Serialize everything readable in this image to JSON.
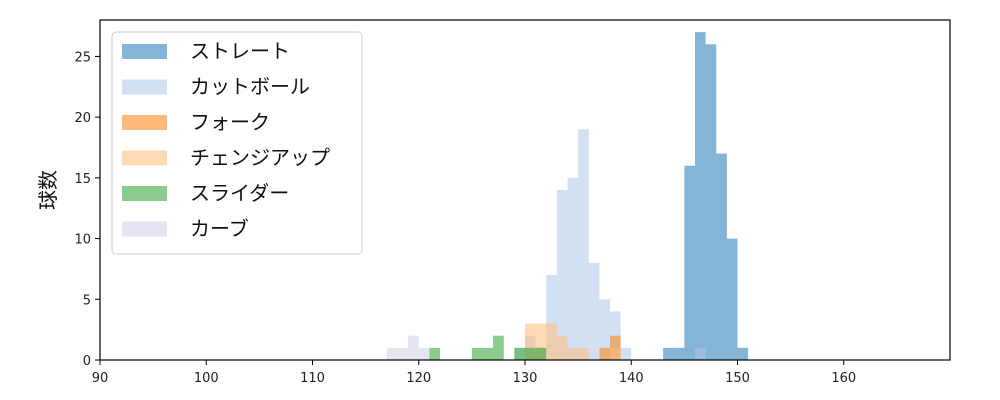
{
  "chart_data": {
    "type": "histogram",
    "xlabel": "",
    "ylabel": "球数",
    "xlim": [
      90,
      170
    ],
    "ylim": [
      0,
      28
    ],
    "xticks": [
      90,
      100,
      110,
      120,
      130,
      140,
      150,
      160
    ],
    "yticks": [
      0,
      5,
      10,
      15,
      20,
      25
    ],
    "grid": false,
    "legend_position": "top-left",
    "bin_width": 1,
    "series": [
      {
        "name": "ストレート",
        "color": "#1f77b4",
        "bars": [
          [
            143,
            1
          ],
          [
            144,
            1
          ],
          [
            145,
            16
          ],
          [
            146,
            27
          ],
          [
            147,
            26
          ],
          [
            148,
            17
          ],
          [
            149,
            10
          ],
          [
            150,
            1
          ]
        ]
      },
      {
        "name": "カットボール",
        "color": "#aec7e8",
        "bars": [
          [
            129,
            1
          ],
          [
            130,
            2
          ],
          [
            131,
            1
          ],
          [
            132,
            7
          ],
          [
            133,
            14
          ],
          [
            134,
            15
          ],
          [
            135,
            19
          ],
          [
            136,
            8
          ],
          [
            137,
            5
          ],
          [
            138,
            4
          ],
          [
            139,
            1
          ],
          [
            146,
            1
          ]
        ]
      },
      {
        "name": "フォーク",
        "color": "#ff7f0e",
        "bars": [
          [
            137,
            1
          ],
          [
            138,
            2
          ]
        ]
      },
      {
        "name": "チェンジアップ",
        "color": "#ffbb78",
        "bars": [
          [
            130,
            3
          ],
          [
            131,
            3
          ],
          [
            132,
            3
          ],
          [
            133,
            2
          ],
          [
            134,
            1
          ],
          [
            135,
            1
          ],
          [
            138,
            1
          ]
        ]
      },
      {
        "name": "スライダー",
        "color": "#2ca02c",
        "bars": [
          [
            121,
            1
          ],
          [
            125,
            1
          ],
          [
            126,
            1
          ],
          [
            127,
            2
          ],
          [
            129,
            1
          ],
          [
            130,
            1
          ],
          [
            131,
            1
          ]
        ]
      },
      {
        "name": "カーブ",
        "color": "#d0d0e6",
        "bars": [
          [
            117,
            1
          ],
          [
            118,
            1
          ],
          [
            119,
            2
          ],
          [
            120,
            1
          ]
        ]
      }
    ]
  }
}
